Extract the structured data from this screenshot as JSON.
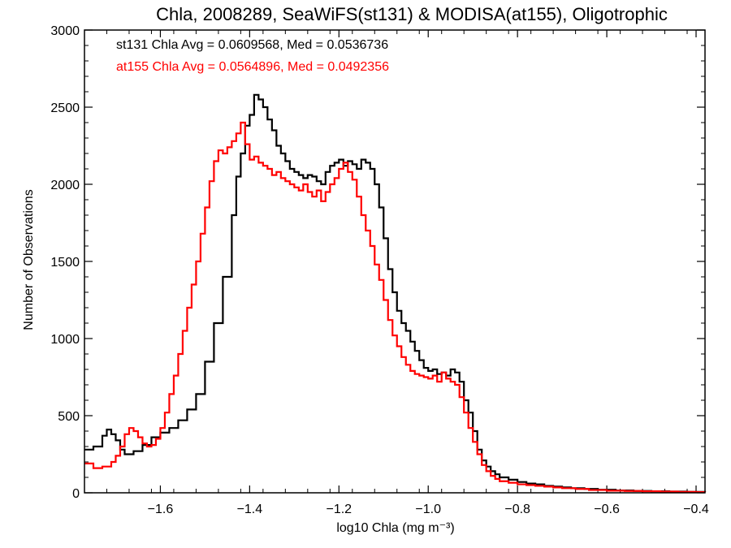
{
  "chart_data": {
    "type": "line",
    "subtype": "step-histogram",
    "title": "Chla, 2008289, SeaWiFS(st131) & MODISA(at155), Oligotrophic",
    "xlabel": "log10 Chla (mg m⁻³)",
    "ylabel": "Number of Observations",
    "xlim": [
      -1.77,
      -0.38
    ],
    "ylim": [
      0,
      3000
    ],
    "xticks": [
      -1.6,
      -1.4,
      -1.2,
      -1.0,
      -0.8,
      -0.6,
      -0.4
    ],
    "xtick_labels": [
      "−1.6",
      "−1.4",
      "−1.2",
      "−1.0",
      "−0.8",
      "−0.6",
      "−0.4"
    ],
    "yticks": [
      0,
      500,
      1000,
      1500,
      2000,
      2500,
      3000
    ],
    "ytick_labels": [
      "0",
      "500",
      "1000",
      "1500",
      "2000",
      "2500",
      "3000"
    ],
    "grid": false,
    "legend_position": "top-left",
    "series": [
      {
        "name": "st131",
        "legend_text": "st131 Chla Avg = 0.0609568, Med = 0.0536736",
        "color": "#000000",
        "points": [
          [
            -1.77,
            280
          ],
          [
            -1.75,
            300
          ],
          [
            -1.73,
            370
          ],
          [
            -1.72,
            410
          ],
          [
            -1.71,
            380
          ],
          [
            -1.7,
            340
          ],
          [
            -1.69,
            280
          ],
          [
            -1.68,
            250
          ],
          [
            -1.66,
            270
          ],
          [
            -1.64,
            310
          ],
          [
            -1.62,
            360
          ],
          [
            -1.6,
            390
          ],
          [
            -1.58,
            420
          ],
          [
            -1.56,
            470
          ],
          [
            -1.54,
            540
          ],
          [
            -1.52,
            640
          ],
          [
            -1.5,
            850
          ],
          [
            -1.48,
            1100
          ],
          [
            -1.46,
            1400
          ],
          [
            -1.44,
            1800
          ],
          [
            -1.43,
            2050
          ],
          [
            -1.42,
            2200
          ],
          [
            -1.41,
            2380
          ],
          [
            -1.4,
            2450
          ],
          [
            -1.39,
            2580
          ],
          [
            -1.38,
            2550
          ],
          [
            -1.37,
            2500
          ],
          [
            -1.36,
            2420
          ],
          [
            -1.35,
            2350
          ],
          [
            -1.34,
            2250
          ],
          [
            -1.33,
            2200
          ],
          [
            -1.32,
            2150
          ],
          [
            -1.31,
            2100
          ],
          [
            -1.3,
            2080
          ],
          [
            -1.29,
            2060
          ],
          [
            -1.28,
            2040
          ],
          [
            -1.27,
            2060
          ],
          [
            -1.26,
            2050
          ],
          [
            -1.25,
            2020
          ],
          [
            -1.24,
            2000
          ],
          [
            -1.23,
            2080
          ],
          [
            -1.22,
            2120
          ],
          [
            -1.21,
            2140
          ],
          [
            -1.2,
            2160
          ],
          [
            -1.19,
            2120
          ],
          [
            -1.18,
            2150
          ],
          [
            -1.17,
            2130
          ],
          [
            -1.16,
            2100
          ],
          [
            -1.15,
            2160
          ],
          [
            -1.14,
            2140
          ],
          [
            -1.13,
            2100
          ],
          [
            -1.12,
            2000
          ],
          [
            -1.11,
            1850
          ],
          [
            -1.1,
            1650
          ],
          [
            -1.09,
            1450
          ],
          [
            -1.08,
            1300
          ],
          [
            -1.07,
            1180
          ],
          [
            -1.06,
            1100
          ],
          [
            -1.05,
            1050
          ],
          [
            -1.04,
            980
          ],
          [
            -1.03,
            920
          ],
          [
            -1.02,
            860
          ],
          [
            -1.01,
            810
          ],
          [
            -1.0,
            790
          ],
          [
            -0.99,
            800
          ],
          [
            -0.98,
            770
          ],
          [
            -0.97,
            780
          ],
          [
            -0.96,
            760
          ],
          [
            -0.95,
            800
          ],
          [
            -0.94,
            780
          ],
          [
            -0.93,
            720
          ],
          [
            -0.92,
            600
          ],
          [
            -0.91,
            520
          ],
          [
            -0.9,
            400
          ],
          [
            -0.89,
            280
          ],
          [
            -0.88,
            210
          ],
          [
            -0.87,
            170
          ],
          [
            -0.86,
            140
          ],
          [
            -0.85,
            120
          ],
          [
            -0.84,
            100
          ],
          [
            -0.82,
            85
          ],
          [
            -0.8,
            70
          ],
          [
            -0.78,
            60
          ],
          [
            -0.76,
            55
          ],
          [
            -0.74,
            45
          ],
          [
            -0.72,
            40
          ],
          [
            -0.7,
            35
          ],
          [
            -0.68,
            30
          ],
          [
            -0.65,
            25
          ],
          [
            -0.62,
            20
          ],
          [
            -0.58,
            15
          ],
          [
            -0.54,
            12
          ],
          [
            -0.5,
            10
          ],
          [
            -0.46,
            8
          ],
          [
            -0.42,
            6
          ],
          [
            -0.38,
            5
          ]
        ]
      },
      {
        "name": "at155",
        "legend_text": "at155 Chla Avg = 0.0564896, Med = 0.0492356",
        "color": "#ff0000",
        "points": [
          [
            -1.77,
            190
          ],
          [
            -1.75,
            160
          ],
          [
            -1.73,
            170
          ],
          [
            -1.71,
            200
          ],
          [
            -1.7,
            240
          ],
          [
            -1.69,
            300
          ],
          [
            -1.68,
            380
          ],
          [
            -1.67,
            420
          ],
          [
            -1.66,
            400
          ],
          [
            -1.65,
            360
          ],
          [
            -1.64,
            320
          ],
          [
            -1.63,
            300
          ],
          [
            -1.62,
            310
          ],
          [
            -1.61,
            350
          ],
          [
            -1.6,
            420
          ],
          [
            -1.59,
            520
          ],
          [
            -1.58,
            640
          ],
          [
            -1.57,
            760
          ],
          [
            -1.56,
            900
          ],
          [
            -1.55,
            1050
          ],
          [
            -1.54,
            1200
          ],
          [
            -1.53,
            1350
          ],
          [
            -1.52,
            1500
          ],
          [
            -1.51,
            1680
          ],
          [
            -1.5,
            1850
          ],
          [
            -1.49,
            2020
          ],
          [
            -1.48,
            2150
          ],
          [
            -1.47,
            2220
          ],
          [
            -1.46,
            2200
          ],
          [
            -1.45,
            2240
          ],
          [
            -1.44,
            2280
          ],
          [
            -1.43,
            2330
          ],
          [
            -1.42,
            2400
          ],
          [
            -1.41,
            2260
          ],
          [
            -1.4,
            2160
          ],
          [
            -1.39,
            2180
          ],
          [
            -1.38,
            2140
          ],
          [
            -1.37,
            2120
          ],
          [
            -1.36,
            2100
          ],
          [
            -1.35,
            2060
          ],
          [
            -1.34,
            2080
          ],
          [
            -1.33,
            2040
          ],
          [
            -1.32,
            2020
          ],
          [
            -1.31,
            2000
          ],
          [
            -1.3,
            1980
          ],
          [
            -1.29,
            1960
          ],
          [
            -1.28,
            2000
          ],
          [
            -1.27,
            1950
          ],
          [
            -1.26,
            1920
          ],
          [
            -1.25,
            1960
          ],
          [
            -1.24,
            1890
          ],
          [
            -1.23,
            1950
          ],
          [
            -1.22,
            2000
          ],
          [
            -1.21,
            2040
          ],
          [
            -1.2,
            2100
          ],
          [
            -1.19,
            2140
          ],
          [
            -1.18,
            2080
          ],
          [
            -1.17,
            2030
          ],
          [
            -1.16,
            1920
          ],
          [
            -1.15,
            1800
          ],
          [
            -1.14,
            1700
          ],
          [
            -1.13,
            1600
          ],
          [
            -1.12,
            1480
          ],
          [
            -1.11,
            1380
          ],
          [
            -1.1,
            1250
          ],
          [
            -1.09,
            1120
          ],
          [
            -1.08,
            1020
          ],
          [
            -1.07,
            950
          ],
          [
            -1.06,
            880
          ],
          [
            -1.05,
            830
          ],
          [
            -1.04,
            790
          ],
          [
            -1.03,
            770
          ],
          [
            -1.02,
            760
          ],
          [
            -1.01,
            750
          ],
          [
            -1.0,
            740
          ],
          [
            -0.99,
            760
          ],
          [
            -0.98,
            720
          ],
          [
            -0.97,
            780
          ],
          [
            -0.96,
            740
          ],
          [
            -0.95,
            720
          ],
          [
            -0.94,
            700
          ],
          [
            -0.93,
            620
          ],
          [
            -0.92,
            520
          ],
          [
            -0.91,
            420
          ],
          [
            -0.9,
            330
          ],
          [
            -0.89,
            250
          ],
          [
            -0.88,
            180
          ],
          [
            -0.87,
            140
          ],
          [
            -0.86,
            110
          ],
          [
            -0.85,
            90
          ],
          [
            -0.84,
            75
          ],
          [
            -0.82,
            65
          ],
          [
            -0.8,
            55
          ],
          [
            -0.78,
            50
          ],
          [
            -0.76,
            45
          ],
          [
            -0.74,
            40
          ],
          [
            -0.72,
            35
          ],
          [
            -0.7,
            30
          ],
          [
            -0.67,
            25
          ],
          [
            -0.64,
            18
          ],
          [
            -0.6,
            14
          ],
          [
            -0.56,
            12
          ],
          [
            -0.52,
            10
          ],
          [
            -0.48,
            8
          ],
          [
            -0.44,
            6
          ],
          [
            -0.4,
            5
          ],
          [
            -0.38,
            4
          ]
        ]
      }
    ]
  }
}
